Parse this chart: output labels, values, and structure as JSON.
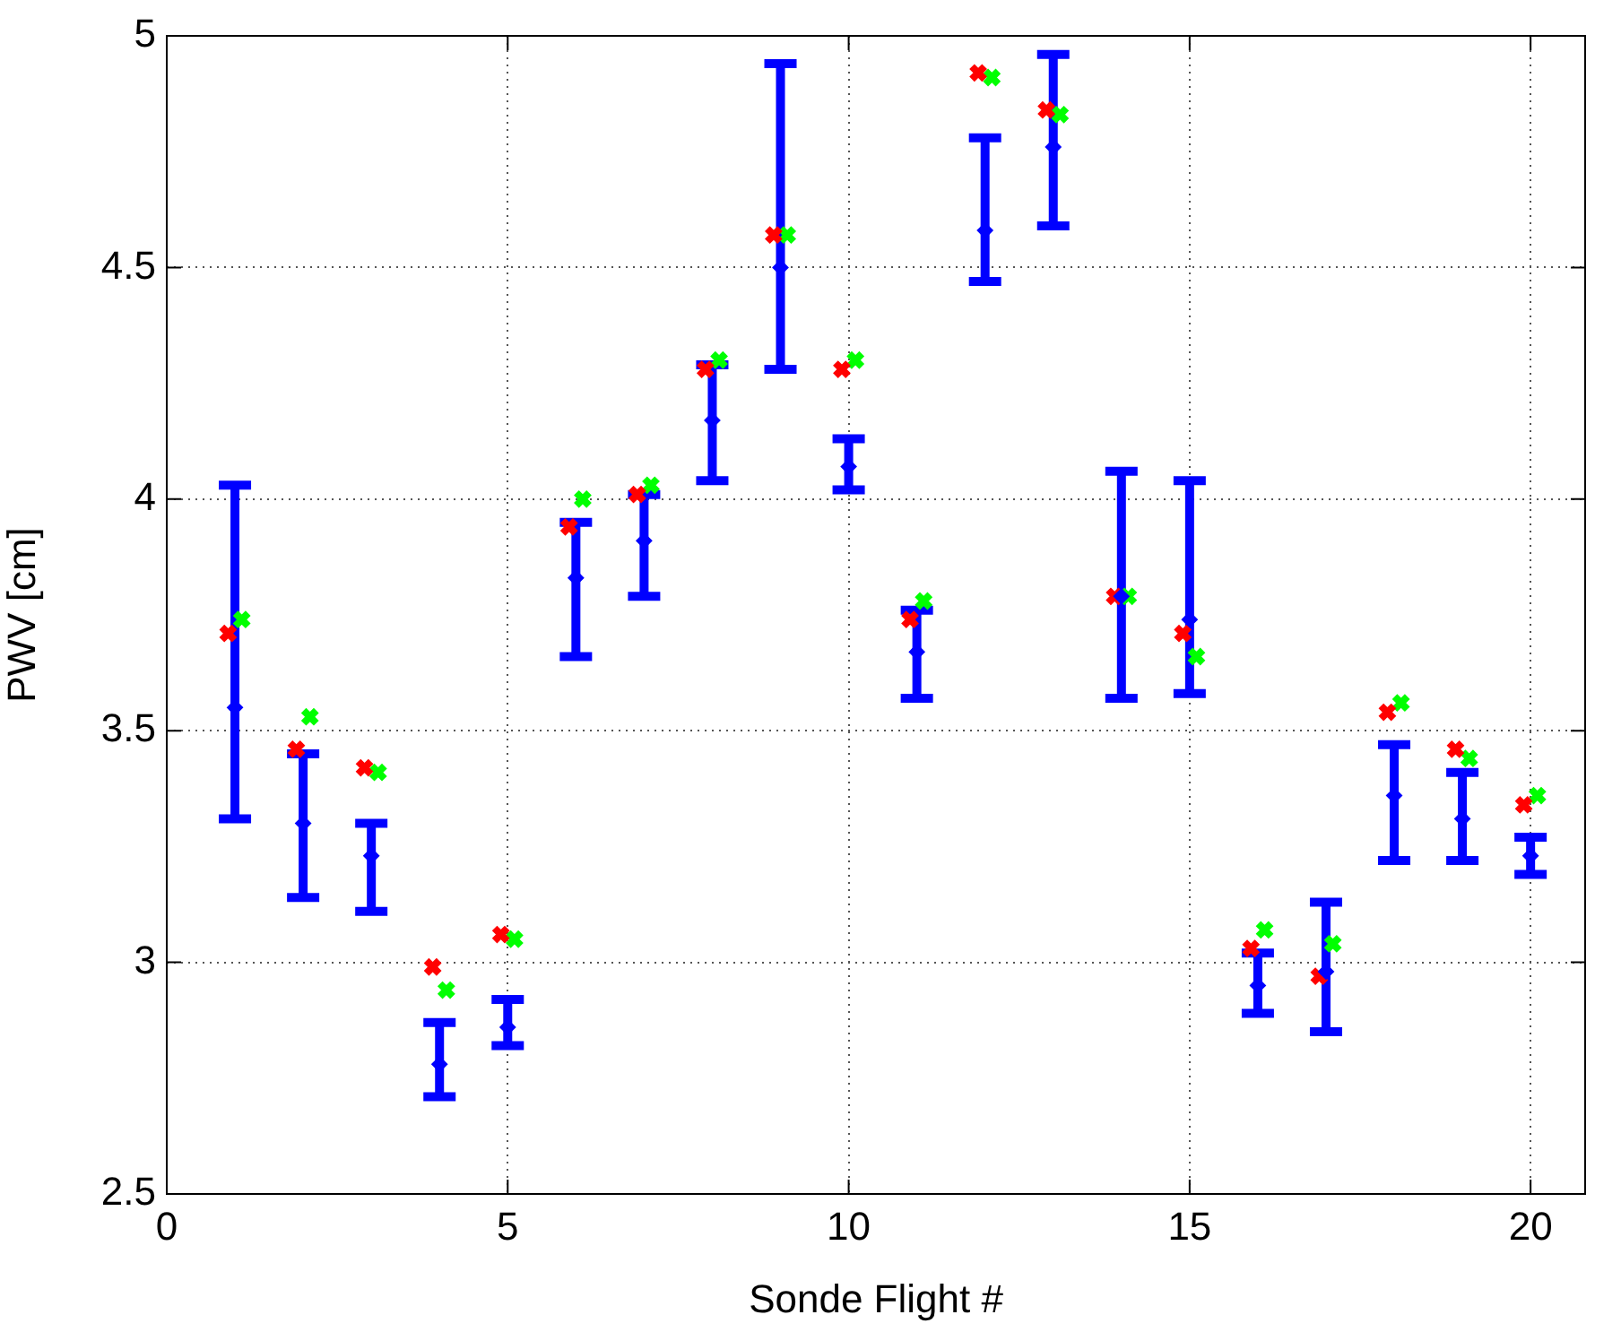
{
  "chart_data": {
    "type": "scatter",
    "xlabel": "Sonde Flight #",
    "ylabel": "PWV [cm]",
    "xlim": [
      0,
      20.8
    ],
    "xticks": [
      0,
      5,
      10,
      15,
      20
    ],
    "ylim": [
      2.5,
      5
    ],
    "yticks": [
      2.5,
      3,
      3.5,
      4,
      4.5,
      5
    ],
    "grid": true,
    "series": [
      {
        "color": "#0000ff",
        "marker": "diamond",
        "x": [
          1,
          2,
          3,
          4,
          5,
          6,
          7,
          8,
          9,
          10,
          11,
          12,
          13,
          14,
          15,
          16,
          17,
          18,
          19,
          20
        ],
        "values": [
          3.55,
          3.3,
          3.23,
          2.78,
          2.86,
          3.83,
          3.91,
          4.17,
          4.5,
          4.07,
          3.67,
          4.58,
          4.76,
          3.79,
          3.74,
          2.95,
          2.98,
          3.36,
          3.31,
          3.23
        ],
        "errors": [
          [
            3.31,
            4.03
          ],
          [
            3.14,
            3.45
          ],
          [
            3.11,
            3.3
          ],
          [
            2.71,
            2.87
          ],
          [
            2.82,
            2.92
          ],
          [
            3.66,
            3.95
          ],
          [
            3.79,
            4.01
          ],
          [
            4.04,
            4.29
          ],
          [
            4.28,
            4.94
          ],
          [
            4.02,
            4.13
          ],
          [
            3.57,
            3.76
          ],
          [
            4.47,
            4.78
          ],
          [
            4.59,
            4.96
          ],
          [
            3.57,
            4.06
          ],
          [
            3.58,
            4.04
          ],
          [
            2.89,
            3.02
          ],
          [
            2.85,
            3.13
          ],
          [
            3.22,
            3.47
          ],
          [
            3.22,
            3.41
          ],
          [
            3.19,
            3.27
          ]
        ]
      },
      {
        "color": "#ff0000",
        "marker": "cross",
        "x": [
          0.9,
          1.9,
          2.9,
          3.9,
          4.9,
          5.9,
          6.9,
          7.9,
          8.9,
          9.9,
          10.9,
          11.9,
          12.9,
          13.9,
          14.9,
          15.9,
          16.9,
          17.9,
          18.9,
          19.9
        ],
        "values": [
          3.71,
          3.46,
          3.42,
          2.99,
          3.06,
          3.94,
          4.01,
          4.28,
          4.57,
          4.28,
          3.74,
          4.92,
          4.84,
          3.79,
          3.71,
          3.03,
          2.97,
          3.54,
          3.46,
          3.34
        ]
      },
      {
        "color": "#00ff00",
        "marker": "cross",
        "x": [
          1.1,
          2.1,
          3.1,
          4.1,
          5.1,
          6.1,
          7.1,
          8.1,
          9.1,
          10.1,
          11.1,
          12.1,
          13.1,
          14.1,
          15.1,
          16.1,
          17.1,
          18.1,
          19.1,
          20.1
        ],
        "values": [
          3.74,
          3.53,
          3.41,
          2.94,
          3.05,
          4.0,
          4.03,
          4.3,
          4.57,
          4.3,
          3.78,
          4.91,
          4.83,
          3.79,
          3.66,
          3.07,
          3.04,
          3.56,
          3.44,
          3.36
        ]
      }
    ]
  }
}
